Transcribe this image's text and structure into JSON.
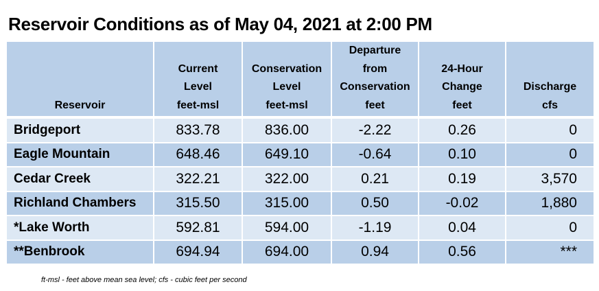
{
  "title": "Reservoir Conditions as of May 04, 2021 at 2:00 PM",
  "table": {
    "headers": [
      {
        "lines": [
          "Reservoir"
        ]
      },
      {
        "lines": [
          "Current",
          "Level",
          "feet-msl"
        ]
      },
      {
        "lines": [
          "Conservation",
          "Level",
          "feet-msl"
        ]
      },
      {
        "lines": [
          "Departure",
          "from",
          "Conservation",
          "feet"
        ]
      },
      {
        "lines": [
          "24-Hour",
          "Change",
          "feet"
        ]
      },
      {
        "lines": [
          "Discharge",
          "cfs"
        ]
      }
    ],
    "rows": [
      {
        "reservoir": "Bridgeport",
        "current_level": "833.78",
        "conservation_level": "836.00",
        "departure": "-2.22",
        "change_24h": "0.26",
        "discharge": "0"
      },
      {
        "reservoir": "Eagle Mountain",
        "current_level": "648.46",
        "conservation_level": "649.10",
        "departure": "-0.64",
        "change_24h": "0.10",
        "discharge": "0"
      },
      {
        "reservoir": "Cedar Creek",
        "current_level": "322.21",
        "conservation_level": "322.00",
        "departure": "0.21",
        "change_24h": "0.19",
        "discharge": "3,570"
      },
      {
        "reservoir": "Richland Chambers",
        "current_level": "315.50",
        "conservation_level": "315.00",
        "departure": "0.50",
        "change_24h": "-0.02",
        "discharge": "1,880"
      },
      {
        "reservoir": "*Lake Worth",
        "current_level": "592.81",
        "conservation_level": "594.00",
        "departure": "-1.19",
        "change_24h": "0.04",
        "discharge": "0"
      },
      {
        "reservoir": "**Benbrook",
        "current_level": "694.94",
        "conservation_level": "694.00",
        "departure": "0.94",
        "change_24h": "0.56",
        "discharge": "***"
      }
    ]
  },
  "footnote": "ft-msl - feet above mean sea level; cfs - cubic feet per second"
}
